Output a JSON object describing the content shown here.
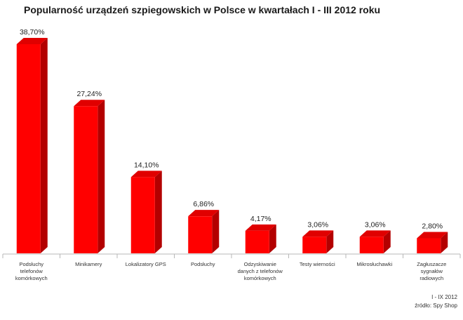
{
  "chart_data": {
    "type": "bar",
    "title": "Popularność urządzeń szpiegowskich w Polsce w kwartałach I - III 2012 roku",
    "categories": [
      "Podsłuchy telefonów komórkowych",
      "Minikamery",
      "Lokalizatory GPS",
      "Podsłuchy",
      "Odzyskiwanie danych z telefonów komórkowych",
      "Testy wierności",
      "Mikrosłuchawki",
      "Zagłuszacze sygnałów radiowych"
    ],
    "category_lines": [
      [
        "Podsłuchy",
        "telefonów",
        "komórkowych"
      ],
      [
        "Minikamery"
      ],
      [
        "Lokalizatory GPS"
      ],
      [
        "Podsłuchy"
      ],
      [
        "Odzyskiwanie",
        "danych z telefonów",
        "komórkowych"
      ],
      [
        "Testy wierności"
      ],
      [
        "Mikrosłuchawki"
      ],
      [
        "Zagłuszacze",
        "sygnałów",
        "radiowych"
      ]
    ],
    "values": [
      38.7,
      27.24,
      14.1,
      6.86,
      4.17,
      3.06,
      3.06,
      2.8
    ],
    "value_labels": [
      "38,70%",
      "27,24%",
      "14,10%",
      "6,86%",
      "4,17%",
      "3,06%",
      "3,06%",
      "2,80%"
    ],
    "ylim": [
      0,
      40
    ],
    "grid": false,
    "legend": "none",
    "colors": {
      "front": "#ff0000",
      "side": "#b30000",
      "top": "#e00000",
      "axis": "#b7b7b7"
    }
  },
  "source": {
    "period": "I - IX 2012",
    "credit": "źródło: Spy Shop"
  }
}
